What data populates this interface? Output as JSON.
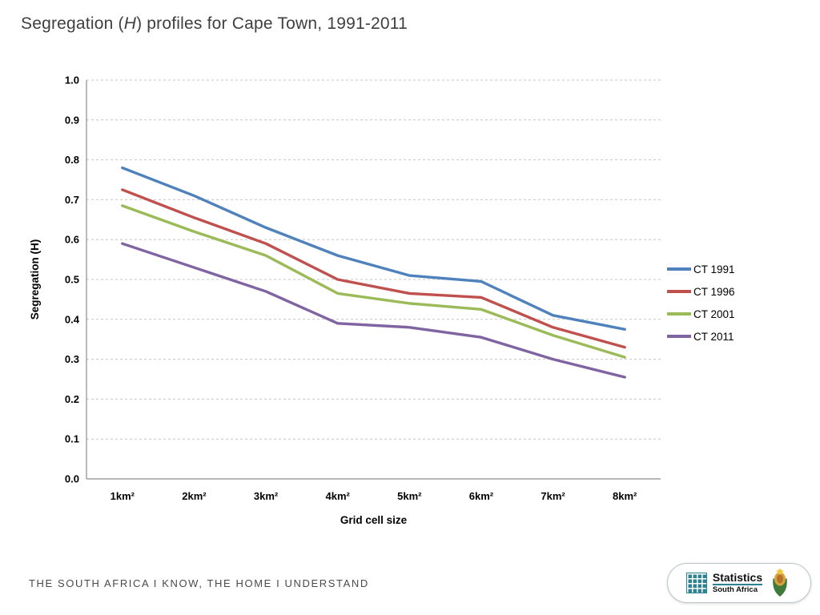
{
  "slide": {
    "title": {
      "prefix": "Segregation (",
      "italic": "H",
      "suffix": ") profiles for Cape Town, 1991-2011"
    },
    "footer_text": "THE SOUTH AFRICA I KNOW, THE HOME I UNDERSTAND",
    "logo": {
      "line1": "Statistics",
      "line2": "South Africa"
    }
  },
  "chart_data": {
    "type": "line",
    "title": "Segregation (H) profiles for Cape Town, 1991-2011",
    "categories": [
      "1km²",
      "2km²",
      "3km²",
      "4km²",
      "5km²",
      "6km²",
      "7km²",
      "8km²"
    ],
    "series": [
      {
        "name": "CT 1991",
        "color": "#4F81BD",
        "values": [
          0.78,
          0.71,
          0.63,
          0.56,
          0.51,
          0.495,
          0.41,
          0.375
        ]
      },
      {
        "name": "CT 1996",
        "color": "#C0504D",
        "values": [
          0.725,
          0.655,
          0.59,
          0.5,
          0.465,
          0.455,
          0.38,
          0.33
        ]
      },
      {
        "name": "CT 2001",
        "color": "#9BBB59",
        "values": [
          0.685,
          0.62,
          0.56,
          0.465,
          0.44,
          0.425,
          0.36,
          0.305
        ]
      },
      {
        "name": "CT 2011",
        "color": "#8064A2",
        "values": [
          0.59,
          0.53,
          0.47,
          0.39,
          0.38,
          0.355,
          0.3,
          0.255
        ]
      }
    ],
    "xlabel": "Grid cell size",
    "ylabel": "Segregation (H)",
    "ylim": [
      0.0,
      1.0
    ],
    "ytick_step": 0.1,
    "grid": "dashed-horizontal",
    "legend_position": "right"
  }
}
